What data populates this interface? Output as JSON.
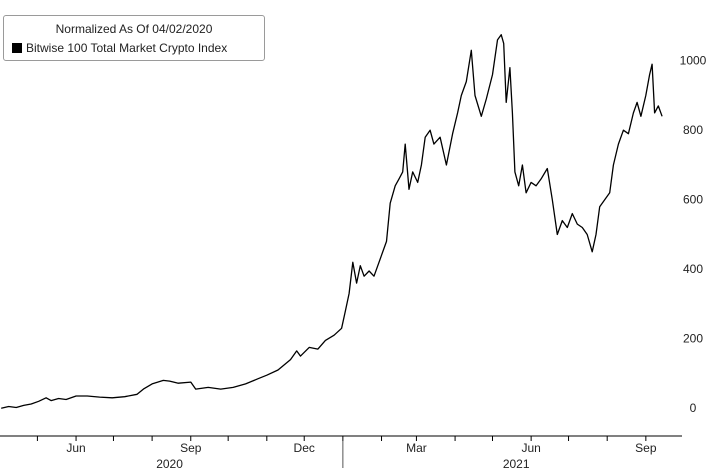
{
  "legend": {
    "title": "Normalized As Of 04/02/2020",
    "series_label": "Bitwise 100 Total Market Crypto Index",
    "swatch_color": "#000000"
  },
  "chart_data": {
    "type": "line",
    "title": "",
    "xlabel": "",
    "ylabel": "",
    "y_axis_position": "right",
    "ylim": [
      -80,
      1100
    ],
    "yticks": [
      0,
      200,
      400,
      600,
      800,
      1000
    ],
    "grid": false,
    "legend_position": "top-left",
    "x_range": [
      "2020-04-01",
      "2021-09-30"
    ],
    "x_tick_labels": [
      {
        "label": "Jun",
        "date": "2020-06-01"
      },
      {
        "label": "Sep",
        "date": "2020-09-01"
      },
      {
        "label": "Dec",
        "date": "2020-12-01"
      },
      {
        "label": "Mar",
        "date": "2021-03-01"
      },
      {
        "label": "Jun",
        "date": "2021-06-01"
      },
      {
        "label": "Sep",
        "date": "2021-09-01"
      }
    ],
    "month_tick_dates": [
      "2020-05-01",
      "2020-06-01",
      "2020-07-01",
      "2020-08-01",
      "2020-09-01",
      "2020-10-01",
      "2020-11-01",
      "2020-12-01",
      "2021-01-01",
      "2021-02-01",
      "2021-03-01",
      "2021-04-01",
      "2021-05-01",
      "2021-06-01",
      "2021-07-01",
      "2021-08-01",
      "2021-09-01"
    ],
    "year_labels": [
      {
        "label": "2020",
        "date": "2020-08-15"
      },
      {
        "label": "2021",
        "date": "2021-05-20"
      }
    ],
    "year_divider_date": "2021-01-01",
    "series": [
      {
        "name": "Bitwise 100 Total Market Crypto Index",
        "color": "#000000",
        "points": [
          [
            "2020-04-02",
            0
          ],
          [
            "2020-04-08",
            5
          ],
          [
            "2020-04-14",
            2
          ],
          [
            "2020-04-20",
            8
          ],
          [
            "2020-04-26",
            12
          ],
          [
            "2020-05-02",
            20
          ],
          [
            "2020-05-08",
            30
          ],
          [
            "2020-05-12",
            22
          ],
          [
            "2020-05-18",
            28
          ],
          [
            "2020-05-24",
            25
          ],
          [
            "2020-06-01",
            35
          ],
          [
            "2020-06-10",
            35
          ],
          [
            "2020-06-20",
            32
          ],
          [
            "2020-06-30",
            30
          ],
          [
            "2020-07-10",
            33
          ],
          [
            "2020-07-20",
            40
          ],
          [
            "2020-07-25",
            55
          ],
          [
            "2020-08-01",
            70
          ],
          [
            "2020-08-10",
            80
          ],
          [
            "2020-08-15",
            78
          ],
          [
            "2020-08-22",
            72
          ],
          [
            "2020-09-01",
            75
          ],
          [
            "2020-09-05",
            55
          ],
          [
            "2020-09-15",
            60
          ],
          [
            "2020-09-25",
            55
          ],
          [
            "2020-10-05",
            60
          ],
          [
            "2020-10-15",
            70
          ],
          [
            "2020-10-25",
            85
          ],
          [
            "2020-11-01",
            95
          ],
          [
            "2020-11-10",
            110
          ],
          [
            "2020-11-20",
            140
          ],
          [
            "2020-11-25",
            165
          ],
          [
            "2020-11-28",
            150
          ],
          [
            "2020-12-05",
            175
          ],
          [
            "2020-12-12",
            170
          ],
          [
            "2020-12-18",
            195
          ],
          [
            "2020-12-25",
            210
          ],
          [
            "2020-12-31",
            230
          ],
          [
            "2021-01-03",
            280
          ],
          [
            "2021-01-06",
            330
          ],
          [
            "2021-01-09",
            420
          ],
          [
            "2021-01-12",
            360
          ],
          [
            "2021-01-15",
            410
          ],
          [
            "2021-01-18",
            380
          ],
          [
            "2021-01-22",
            395
          ],
          [
            "2021-01-26",
            380
          ],
          [
            "2021-02-01",
            440
          ],
          [
            "2021-02-05",
            480
          ],
          [
            "2021-02-08",
            590
          ],
          [
            "2021-02-12",
            640
          ],
          [
            "2021-02-15",
            660
          ],
          [
            "2021-02-18",
            680
          ],
          [
            "2021-02-20",
            760
          ],
          [
            "2021-02-23",
            630
          ],
          [
            "2021-02-26",
            680
          ],
          [
            "2021-03-02",
            650
          ],
          [
            "2021-03-05",
            700
          ],
          [
            "2021-03-08",
            780
          ],
          [
            "2021-03-12",
            800
          ],
          [
            "2021-03-15",
            760
          ],
          [
            "2021-03-20",
            780
          ],
          [
            "2021-03-25",
            700
          ],
          [
            "2021-03-30",
            790
          ],
          [
            "2021-04-03",
            850
          ],
          [
            "2021-04-06",
            900
          ],
          [
            "2021-04-10",
            940
          ],
          [
            "2021-04-14",
            1030
          ],
          [
            "2021-04-17",
            900
          ],
          [
            "2021-04-22",
            840
          ],
          [
            "2021-04-26",
            890
          ],
          [
            "2021-05-01",
            960
          ],
          [
            "2021-05-05",
            1060
          ],
          [
            "2021-05-08",
            1075
          ],
          [
            "2021-05-10",
            1050
          ],
          [
            "2021-05-12",
            880
          ],
          [
            "2021-05-15",
            980
          ],
          [
            "2021-05-17",
            850
          ],
          [
            "2021-05-19",
            680
          ],
          [
            "2021-05-22",
            640
          ],
          [
            "2021-05-25",
            700
          ],
          [
            "2021-05-28",
            620
          ],
          [
            "2021-06-01",
            650
          ],
          [
            "2021-06-05",
            640
          ],
          [
            "2021-06-09",
            660
          ],
          [
            "2021-06-14",
            690
          ],
          [
            "2021-06-18",
            600
          ],
          [
            "2021-06-22",
            500
          ],
          [
            "2021-06-26",
            540
          ],
          [
            "2021-06-30",
            520
          ],
          [
            "2021-07-04",
            560
          ],
          [
            "2021-07-08",
            530
          ],
          [
            "2021-07-12",
            520
          ],
          [
            "2021-07-16",
            500
          ],
          [
            "2021-07-20",
            450
          ],
          [
            "2021-07-23",
            500
          ],
          [
            "2021-07-26",
            580
          ],
          [
            "2021-07-30",
            600
          ],
          [
            "2021-08-03",
            620
          ],
          [
            "2021-08-06",
            700
          ],
          [
            "2021-08-10",
            760
          ],
          [
            "2021-08-14",
            800
          ],
          [
            "2021-08-18",
            790
          ],
          [
            "2021-08-22",
            850
          ],
          [
            "2021-08-25",
            880
          ],
          [
            "2021-08-28",
            840
          ],
          [
            "2021-09-01",
            900
          ],
          [
            "2021-09-04",
            960
          ],
          [
            "2021-09-06",
            990
          ],
          [
            "2021-09-08",
            850
          ],
          [
            "2021-09-11",
            870
          ],
          [
            "2021-09-14",
            840
          ]
        ]
      }
    ]
  }
}
